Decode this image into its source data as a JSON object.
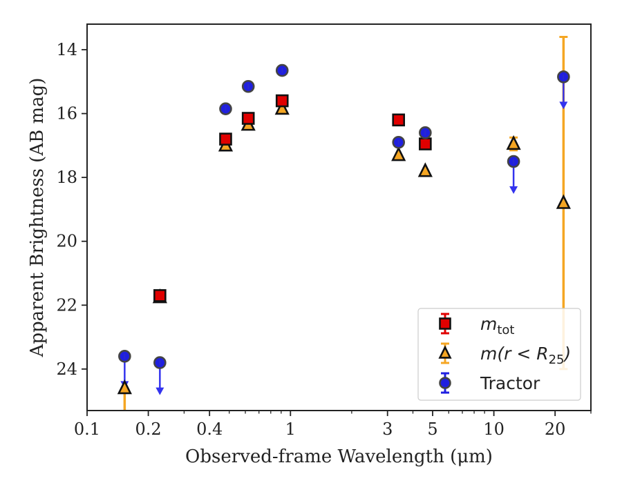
{
  "chart_data": {
    "type": "scatter",
    "title": "",
    "xlabel": "Observed-frame Wavelength (μm)",
    "ylabel": "Apparent Brightness (AB mag)",
    "xscale": "log",
    "xlim": [
      0.1,
      30
    ],
    "ylim": [
      25.3,
      13.2
    ],
    "y_inverted": true,
    "grid": false,
    "legend_position": "bottom-right",
    "x_ticks": [
      {
        "value": 0.1,
        "label": "0.1"
      },
      {
        "value": 0.2,
        "label": "0.2"
      },
      {
        "value": 0.4,
        "label": "0.4"
      },
      {
        "value": 1,
        "label": "1"
      },
      {
        "value": 3,
        "label": "3"
      },
      {
        "value": 5,
        "label": "5"
      },
      {
        "value": 10,
        "label": "10"
      },
      {
        "value": 20,
        "label": "20"
      }
    ],
    "y_ticks": [
      {
        "value": 14,
        "label": "14"
      },
      {
        "value": 16,
        "label": "16"
      },
      {
        "value": 18,
        "label": "18"
      },
      {
        "value": 20,
        "label": "20"
      },
      {
        "value": 22,
        "label": "22"
      },
      {
        "value": 24,
        "label": "24"
      }
    ],
    "series": [
      {
        "name": "m_tot",
        "label_base": "m",
        "label_sub": "tot",
        "marker": "square",
        "color": "#e00000",
        "points": [
          {
            "x": 0.228,
            "y": 21.7
          },
          {
            "x": 0.48,
            "y": 16.8
          },
          {
            "x": 0.62,
            "y": 16.15
          },
          {
            "x": 0.91,
            "y": 15.6
          },
          {
            "x": 3.4,
            "y": 16.2
          },
          {
            "x": 4.6,
            "y": 16.95
          }
        ]
      },
      {
        "name": "m(r < R25)",
        "label_base": "m(r < R",
        "label_sub": "25",
        "label_tail": ")",
        "marker": "triangle",
        "color": "#f5a623",
        "points": [
          {
            "x": 0.153,
            "y": 24.6,
            "yerr_low": 0.9,
            "yerr_high": 0
          },
          {
            "x": 0.228,
            "y": 21.75
          },
          {
            "x": 0.48,
            "y": 17.0
          },
          {
            "x": 0.62,
            "y": 16.35
          },
          {
            "x": 0.91,
            "y": 15.85
          },
          {
            "x": 3.4,
            "y": 17.3
          },
          {
            "x": 4.6,
            "y": 17.8
          },
          {
            "x": 12.5,
            "y": 16.95,
            "yerr_low": 0.2,
            "yerr_high": 0.2
          },
          {
            "x": 22,
            "y": 18.8,
            "yerr_low": 5.2,
            "yerr_high": 5.2
          }
        ]
      },
      {
        "name": "Tractor",
        "label_base": "Tractor",
        "marker": "circle",
        "color": "#1f1fe0",
        "points": [
          {
            "x": 0.153,
            "y": 23.6,
            "upper_limit": true
          },
          {
            "x": 0.228,
            "y": 23.8,
            "upper_limit": true
          },
          {
            "x": 0.48,
            "y": 15.85
          },
          {
            "x": 0.62,
            "y": 15.15
          },
          {
            "x": 0.91,
            "y": 14.65
          },
          {
            "x": 3.4,
            "y": 16.9
          },
          {
            "x": 4.6,
            "y": 16.6
          },
          {
            "x": 12.5,
            "y": 17.5,
            "upper_limit": true
          },
          {
            "x": 22,
            "y": 14.85,
            "upper_limit": true
          }
        ]
      }
    ]
  }
}
